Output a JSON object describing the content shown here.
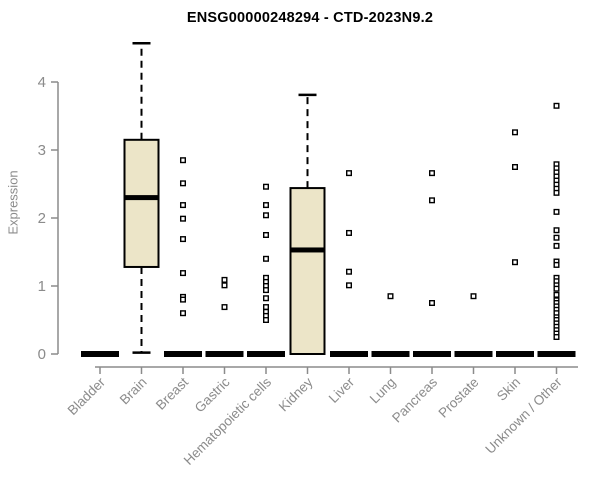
{
  "chart_data": {
    "type": "boxplot",
    "title": "ENSG00000248294 - CTD-2023N9.2",
    "ylabel": "Expression",
    "xlabel": "",
    "ylim": [
      0,
      4
    ],
    "yticks": [
      0,
      1,
      2,
      3,
      4
    ],
    "grid": false,
    "legend": "none",
    "colors": {
      "axis": "#8b8b8b",
      "tick_label": "#8b8b8b",
      "box_fill": "#ece5c8",
      "box_stroke": "#000000",
      "title_color": "#000000"
    },
    "categories": [
      "Bladder",
      "Brain",
      "Breast",
      "Gastric",
      "Hematopoietic cells",
      "Kidney",
      "Liver",
      "Lung",
      "Pancreas",
      "Prostate",
      "Skin",
      "Unknown / Other"
    ],
    "boxes": [
      {
        "category": "Bladder",
        "q1": 0,
        "median": 0,
        "q3": 0,
        "whisker_low": 0,
        "whisker_high": 0,
        "outliers": []
      },
      {
        "category": "Brain",
        "q1": 1.28,
        "median": 2.3,
        "q3": 3.15,
        "whisker_low": 0.02,
        "whisker_high": 4.57,
        "outliers": []
      },
      {
        "category": "Breast",
        "q1": 0,
        "median": 0,
        "q3": 0,
        "whisker_low": 0,
        "whisker_high": 0,
        "outliers": [
          2.85,
          2.51,
          2.19,
          1.99,
          1.69,
          1.19,
          0.84,
          0.8,
          0.6
        ]
      },
      {
        "category": "Gastric",
        "q1": 0,
        "median": 0,
        "q3": 0,
        "whisker_low": 0,
        "whisker_high": 0,
        "outliers": [
          1.09,
          1.01,
          0.69
        ]
      },
      {
        "category": "Hematopoietic cells",
        "q1": 0,
        "median": 0,
        "q3": 0,
        "whisker_low": 0,
        "whisker_high": 0,
        "outliers": [
          2.46,
          2.19,
          2.04,
          1.75,
          1.4,
          1.12,
          1.06,
          1.0,
          0.94,
          0.82,
          0.69,
          0.62,
          0.56,
          0.5
        ]
      },
      {
        "category": "Kidney",
        "q1": 0,
        "median": 1.53,
        "q3": 2.44,
        "whisker_low": 0,
        "whisker_high": 3.81,
        "outliers": []
      },
      {
        "category": "Liver",
        "q1": 0,
        "median": 0,
        "q3": 0,
        "whisker_low": 0,
        "whisker_high": 0,
        "outliers": [
          2.66,
          1.78,
          1.21,
          1.01
        ]
      },
      {
        "category": "Lung",
        "q1": 0,
        "median": 0,
        "q3": 0,
        "whisker_low": 0,
        "whisker_high": 0,
        "outliers": [
          0.85
        ]
      },
      {
        "category": "Pancreas",
        "q1": 0,
        "median": 0,
        "q3": 0,
        "whisker_low": 0,
        "whisker_high": 0,
        "outliers": [
          2.66,
          2.26,
          0.75
        ]
      },
      {
        "category": "Prostate",
        "q1": 0,
        "median": 0,
        "q3": 0,
        "whisker_low": 0,
        "whisker_high": 0,
        "outliers": [
          0.85
        ]
      },
      {
        "category": "Skin",
        "q1": 0,
        "median": 0,
        "q3": 0,
        "whisker_low": 0,
        "whisker_high": 0,
        "outliers": [
          3.26,
          2.75,
          1.35
        ]
      },
      {
        "category": "Unknown / Other",
        "q1": 0,
        "median": 0,
        "q3": 0,
        "whisker_low": 0,
        "whisker_high": 0,
        "outliers": [
          3.65,
          2.79,
          2.73,
          2.67,
          2.61,
          2.55,
          2.49,
          2.43,
          2.37,
          2.09,
          1.82,
          1.71,
          1.59,
          1.36,
          1.31,
          1.12,
          1.07,
          1.01,
          0.96,
          0.87,
          0.79,
          0.75,
          0.7,
          0.65,
          0.6,
          0.54,
          0.5,
          0.45,
          0.4,
          0.35,
          0.3,
          0.25
        ]
      }
    ]
  }
}
